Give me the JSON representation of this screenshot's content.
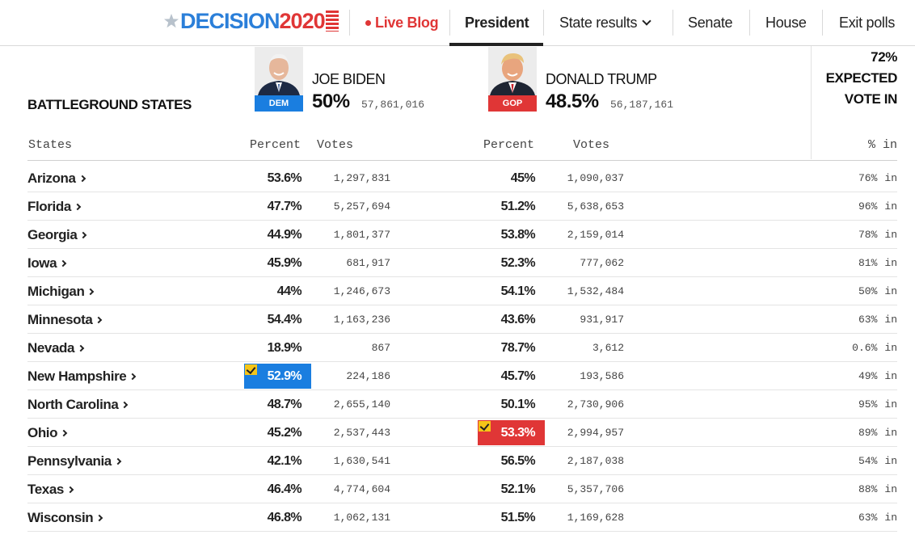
{
  "nav": {
    "logo_word": "DECISION",
    "logo_year": "2020",
    "live": "Live Blog",
    "president": "President",
    "state_results": "State results",
    "senate": "Senate",
    "house": "House",
    "exit_polls": "Exit polls"
  },
  "header": {
    "title": "BATTLEGROUND STATES",
    "dem": {
      "name": "JOE BIDEN",
      "party": "DEM",
      "pct": "50%",
      "votes": "57,861,016",
      "color": "#1a7ee0"
    },
    "rep": {
      "name": "DONALD TRUMP",
      "party": "GOP",
      "pct": "48.5%",
      "votes": "56,187,161",
      "color": "#e03636"
    },
    "expected_pct": "72%",
    "expected_line1": "EXPECTED",
    "expected_line2": "VOTE IN"
  },
  "columns": {
    "states": "States",
    "percent": "Percent",
    "votes": "Votes",
    "pct_in": "% in"
  },
  "rows": [
    {
      "state": "Arizona",
      "dem_pct": "53.6%",
      "dem_votes": "1,297,831",
      "rep_pct": "45%",
      "rep_votes": "1,090,037",
      "pct_in": "76%",
      "in": "in",
      "winner": ""
    },
    {
      "state": "Florida",
      "dem_pct": "47.7%",
      "dem_votes": "5,257,694",
      "rep_pct": "51.2%",
      "rep_votes": "5,638,653",
      "pct_in": "96%",
      "in": "in",
      "winner": ""
    },
    {
      "state": "Georgia",
      "dem_pct": "44.9%",
      "dem_votes": "1,801,377",
      "rep_pct": "53.8%",
      "rep_votes": "2,159,014",
      "pct_in": "78%",
      "in": "in",
      "winner": ""
    },
    {
      "state": "Iowa",
      "dem_pct": "45.9%",
      "dem_votes": "681,917",
      "rep_pct": "52.3%",
      "rep_votes": "777,062",
      "pct_in": "81%",
      "in": "in",
      "winner": ""
    },
    {
      "state": "Michigan",
      "dem_pct": "44%",
      "dem_votes": "1,246,673",
      "rep_pct": "54.1%",
      "rep_votes": "1,532,484",
      "pct_in": "50%",
      "in": "in",
      "winner": ""
    },
    {
      "state": "Minnesota",
      "dem_pct": "54.4%",
      "dem_votes": "1,163,236",
      "rep_pct": "43.6%",
      "rep_votes": "931,917",
      "pct_in": "63%",
      "in": "in",
      "winner": ""
    },
    {
      "state": "Nevada",
      "dem_pct": "18.9%",
      "dem_votes": "867",
      "rep_pct": "78.7%",
      "rep_votes": "3,612",
      "pct_in": "0.6%",
      "in": "in",
      "winner": ""
    },
    {
      "state": "New Hampshire",
      "dem_pct": "52.9%",
      "dem_votes": "224,186",
      "rep_pct": "45.7%",
      "rep_votes": "193,586",
      "pct_in": "49%",
      "in": "in",
      "winner": "dem"
    },
    {
      "state": "North Carolina",
      "dem_pct": "48.7%",
      "dem_votes": "2,655,140",
      "rep_pct": "50.1%",
      "rep_votes": "2,730,906",
      "pct_in": "95%",
      "in": "in",
      "winner": ""
    },
    {
      "state": "Ohio",
      "dem_pct": "45.2%",
      "dem_votes": "2,537,443",
      "rep_pct": "53.3%",
      "rep_votes": "2,994,957",
      "pct_in": "89%",
      "in": "in",
      "winner": "rep"
    },
    {
      "state": "Pennsylvania",
      "dem_pct": "42.1%",
      "dem_votes": "1,630,541",
      "rep_pct": "56.5%",
      "rep_votes": "2,187,038",
      "pct_in": "54%",
      "in": "in",
      "winner": ""
    },
    {
      "state": "Texas",
      "dem_pct": "46.4%",
      "dem_votes": "4,774,604",
      "rep_pct": "52.1%",
      "rep_votes": "5,357,706",
      "pct_in": "88%",
      "in": "in",
      "winner": ""
    },
    {
      "state": "Wisconsin",
      "dem_pct": "46.8%",
      "dem_votes": "1,062,131",
      "rep_pct": "51.5%",
      "rep_votes": "1,169,628",
      "pct_in": "63%",
      "in": "in",
      "winner": ""
    }
  ]
}
